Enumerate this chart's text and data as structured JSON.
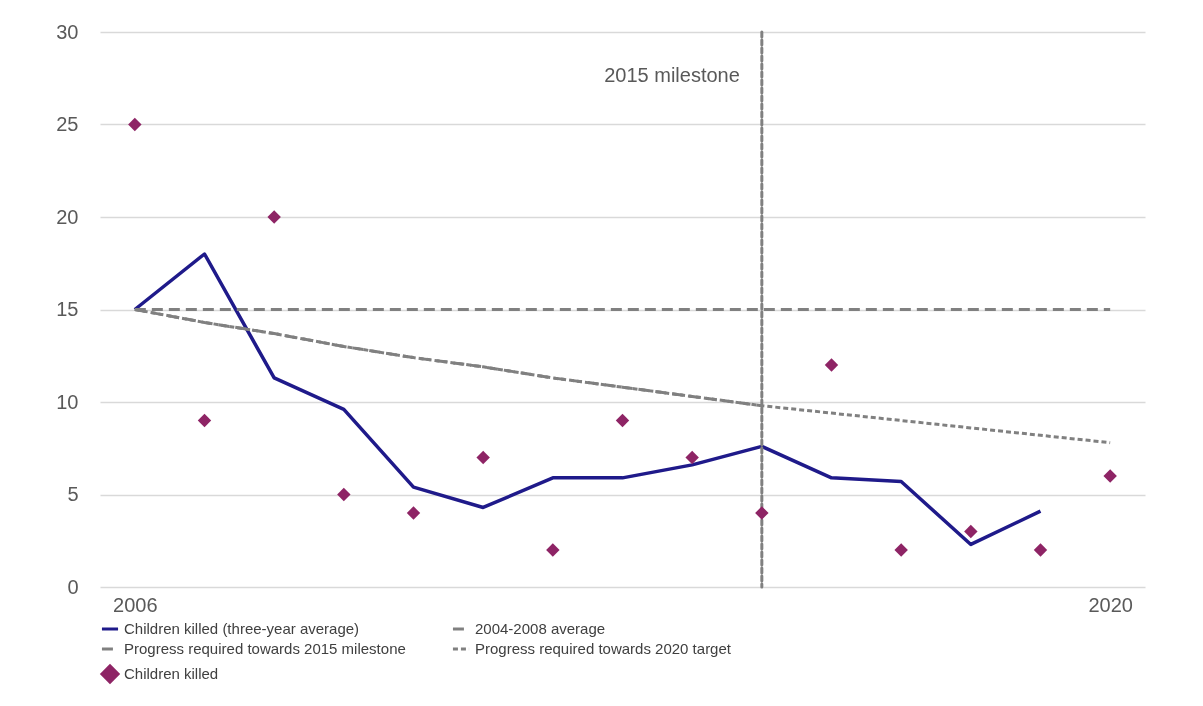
{
  "chart_data": {
    "type": "line",
    "x": [
      2006,
      2007,
      2008,
      2009,
      2010,
      2011,
      2012,
      2013,
      2014,
      2015,
      2016,
      2017,
      2018,
      2019,
      2020
    ],
    "xlim": [
      2005.5,
      2020.5
    ],
    "xticks": [
      2006,
      2020
    ],
    "ylim": [
      0,
      30
    ],
    "yticks": [
      0,
      5,
      10,
      15,
      20,
      25,
      30
    ],
    "grid": "y",
    "legend": "bottom",
    "series": [
      {
        "name": "Children killed (three-year average)",
        "color": "#1f1a8a",
        "line_style": "solid",
        "x": [
          2006,
          2007,
          2008,
          2009,
          2010,
          2011,
          2012,
          2013,
          2014,
          2015,
          2016,
          2017,
          2018,
          2019
        ],
        "values": [
          15,
          18,
          11.3,
          9.6,
          5.4,
          4.3,
          5.9,
          5.9,
          6.6,
          7.6,
          5.9,
          5.7,
          2.3,
          4.1
        ]
      },
      {
        "name": "2004-2008 average",
        "color": "#808080",
        "line_style": "dashed",
        "x": [
          2006,
          2020
        ],
        "values": [
          15,
          15
        ]
      },
      {
        "name": "Progress required towards 2015 milestone",
        "color": "#808080",
        "line_style": "dashed",
        "x": [
          2006,
          2007,
          2008,
          2009,
          2010,
          2011,
          2012,
          2013,
          2014,
          2015
        ],
        "values": [
          15,
          14.3,
          13.7,
          13.0,
          12.4,
          11.9,
          11.3,
          10.8,
          10.3,
          9.8
        ]
      },
      {
        "name": "Progress required towards 2020 target",
        "color": "#808080",
        "line_style": "dotted",
        "x": [
          2006,
          2007,
          2008,
          2009,
          2010,
          2011,
          2012,
          2013,
          2014,
          2015,
          2016,
          2017,
          2018,
          2019,
          2020
        ],
        "values": [
          15,
          14.3,
          13.7,
          13.0,
          12.4,
          11.9,
          11.3,
          10.8,
          10.3,
          9.8,
          9.4,
          9.0,
          8.6,
          8.2,
          7.8
        ]
      },
      {
        "name": "Children killed",
        "type": "scatter",
        "marker": "diamond",
        "color": "#8e2465",
        "values": [
          25,
          9,
          20,
          5,
          4,
          7,
          2,
          9,
          7,
          4,
          12,
          2,
          3,
          2,
          6
        ]
      }
    ],
    "ref_lines": [
      {
        "axis": "x",
        "value": 2015,
        "label": "2015 milestone",
        "line_style": "dotted",
        "color": "#808080"
      }
    ]
  }
}
